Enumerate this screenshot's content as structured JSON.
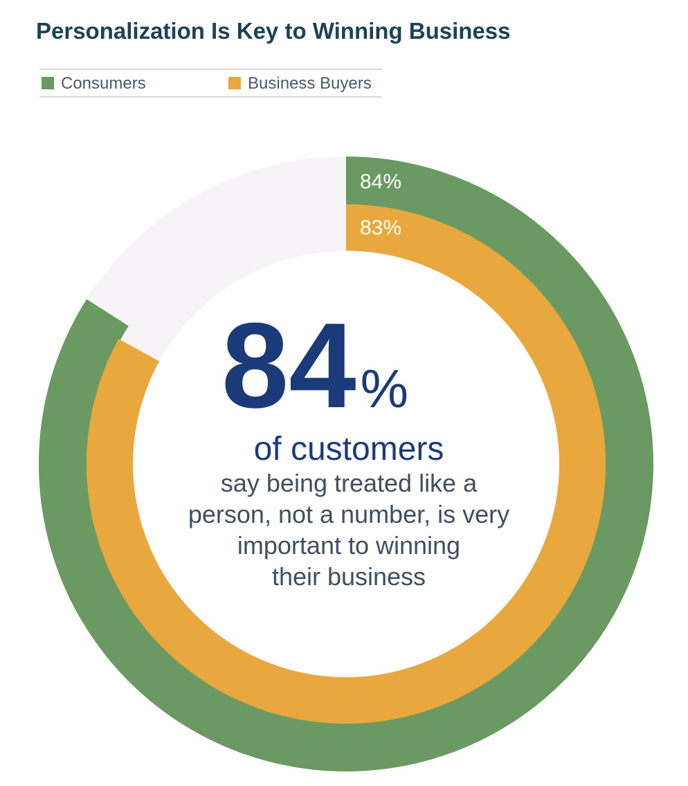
{
  "chart_data": {
    "type": "radial",
    "title": "Personalization Is Key to Winning Business",
    "series": [
      {
        "name": "Consumers",
        "color": "#6a9a62",
        "values": [
          84
        ],
        "value_labels": [
          "84%"
        ]
      },
      {
        "name": "Business Buyers",
        "color": "#e9a83e",
        "values": [
          83
        ],
        "value_labels": [
          "83%"
        ]
      }
    ],
    "ylim": [
      0,
      100
    ],
    "legend": "top-left",
    "annotation": {
      "figure": "84",
      "unit": "%",
      "headline": "of customers",
      "body": [
        "say being treated like a",
        "person, not a number, is very",
        "important to winning",
        "their business"
      ]
    }
  }
}
